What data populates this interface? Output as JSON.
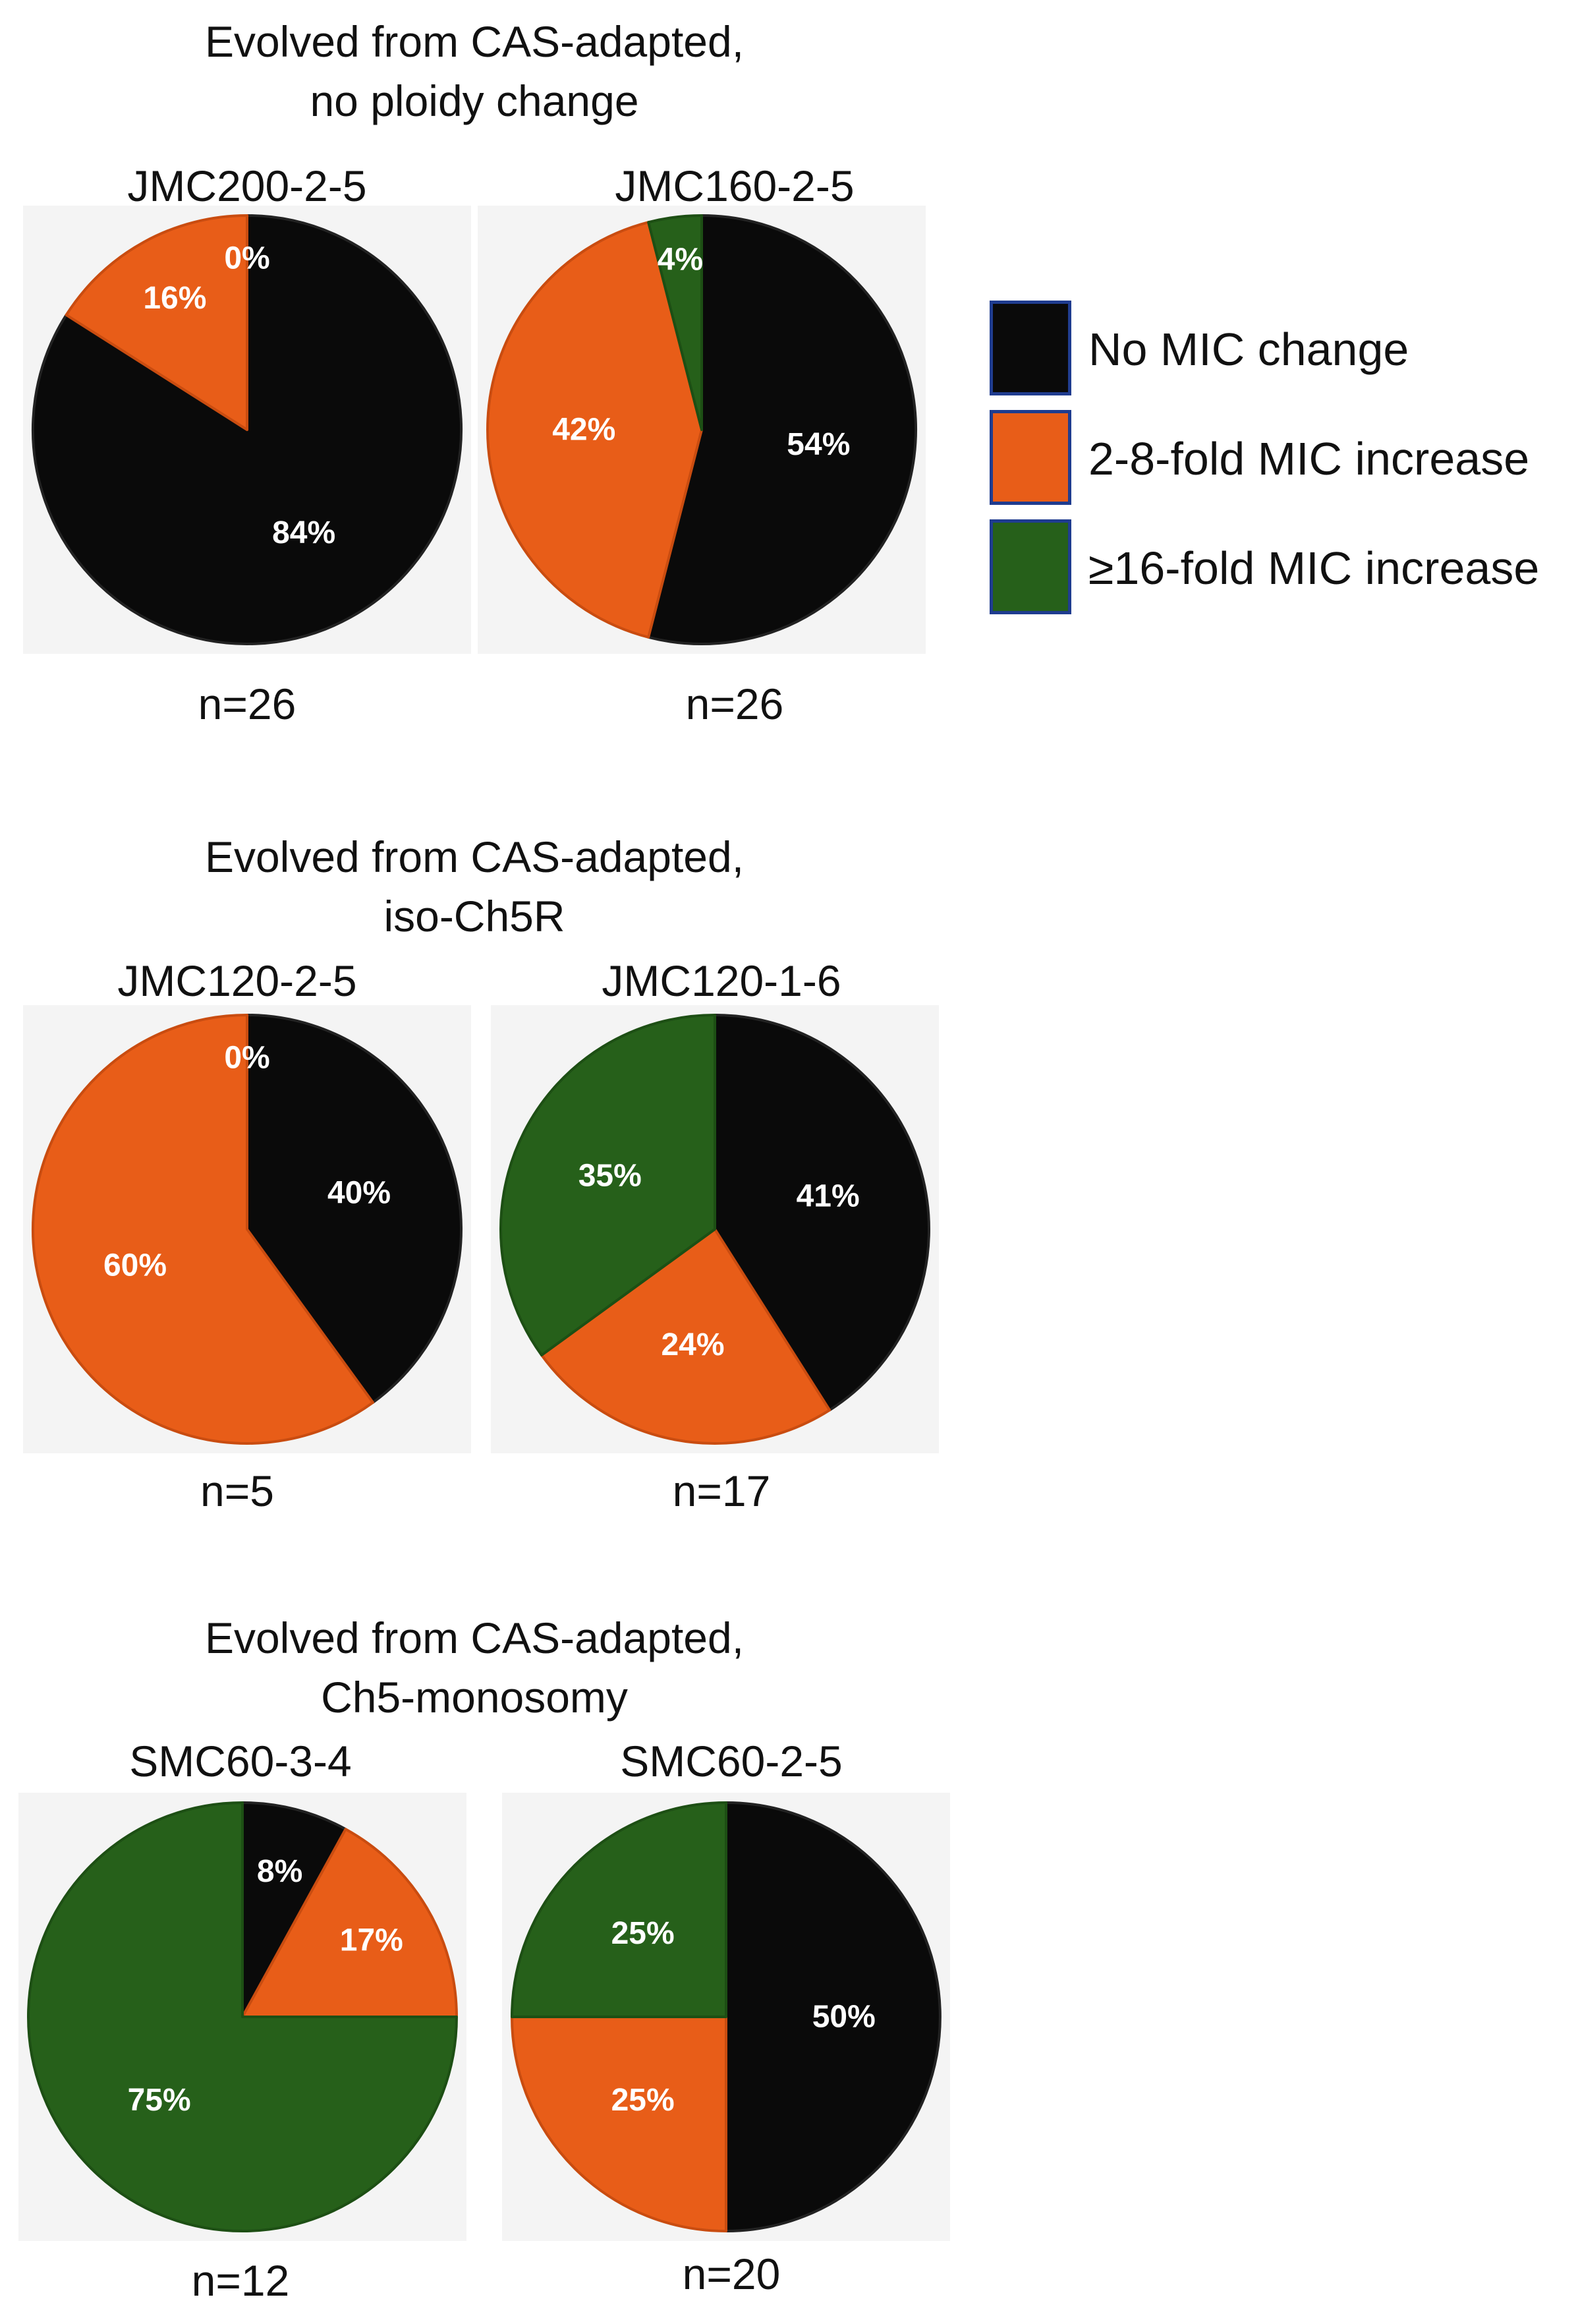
{
  "groups": [
    {
      "title_lines": [
        "Evolved from CAS-adapted,",
        "no ploidy change"
      ]
    },
    {
      "title_lines": [
        "Evolved from CAS-adapted,",
        "iso-Ch5R"
      ]
    },
    {
      "title_lines": [
        "Evolved from CAS-adapted,",
        "Ch5-monosomy"
      ]
    }
  ],
  "legend": {
    "items": [
      {
        "label": "No MIC change",
        "color": "#0a0a0a"
      },
      {
        "label": "2-8-fold MIC increase",
        "color": "#e85d18"
      },
      {
        "label": "≥16-fold MIC increase",
        "color": "#26601a"
      }
    ]
  },
  "chart_data": [
    {
      "type": "pie",
      "title": "JMC200-2-5",
      "n_label": "n=26",
      "group": 0,
      "categories": [
        "No MIC change",
        "2-8-fold MIC increase",
        "≥16-fold MIC increase"
      ],
      "values": [
        84,
        16,
        0
      ],
      "labels": [
        "84%",
        "16%",
        "0%"
      ]
    },
    {
      "type": "pie",
      "title": "JMC160-2-5",
      "n_label": "n=26",
      "group": 0,
      "categories": [
        "No MIC change",
        "2-8-fold MIC increase",
        "≥16-fold MIC increase"
      ],
      "values": [
        54,
        42,
        4
      ],
      "labels": [
        "54%",
        "42%",
        "4%"
      ]
    },
    {
      "type": "pie",
      "title": "JMC120-2-5",
      "n_label": "n=5",
      "group": 1,
      "categories": [
        "No MIC change",
        "2-8-fold MIC increase",
        "≥16-fold MIC increase"
      ],
      "values": [
        40,
        60,
        0
      ],
      "labels": [
        "40%",
        "60%",
        "0%"
      ]
    },
    {
      "type": "pie",
      "title": "JMC120-1-6",
      "n_label": "n=17",
      "group": 1,
      "categories": [
        "No MIC change",
        "2-8-fold MIC increase",
        "≥16-fold MIC increase"
      ],
      "values": [
        41,
        24,
        35
      ],
      "labels": [
        "41%",
        "24%",
        "35%"
      ]
    },
    {
      "type": "pie",
      "title": "SMC60-3-4",
      "n_label": "n=12",
      "group": 2,
      "categories": [
        "No MIC change",
        "2-8-fold MIC increase",
        "≥16-fold MIC increase"
      ],
      "values": [
        8,
        17,
        75
      ],
      "labels": [
        "8%",
        "17%",
        "75%"
      ]
    },
    {
      "type": "pie",
      "title": "SMC60-2-5",
      "n_label": "n=20",
      "group": 2,
      "categories": [
        "No MIC change",
        "2-8-fold MIC increase",
        "≥16-fold MIC increase"
      ],
      "values": [
        50,
        25,
        25
      ],
      "labels": [
        "50%",
        "25%",
        "25%"
      ]
    }
  ]
}
